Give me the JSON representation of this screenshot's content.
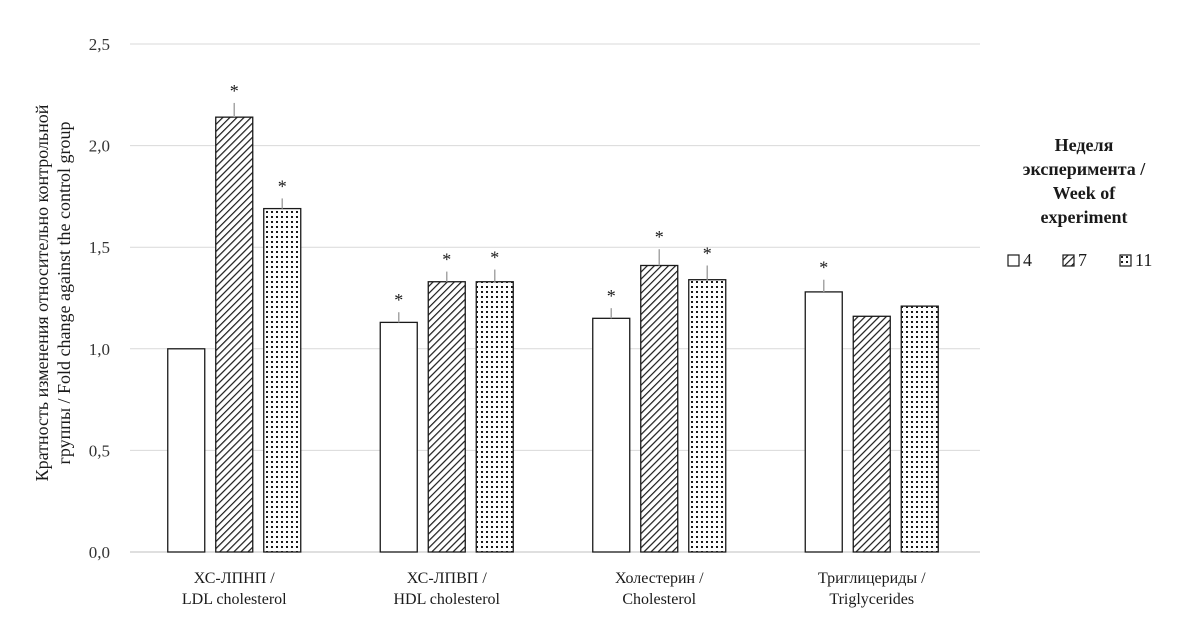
{
  "chart_data": {
    "type": "bar",
    "ylabel_lines": [
      "Кратность изменения относительно контрольной",
      "группы / Fold change against the control group"
    ],
    "xlabel": "",
    "ylim": [
      0,
      2.5
    ],
    "yticks": [
      "0,0",
      "0,5",
      "1,0",
      "1,5",
      "2,0",
      "2,5"
    ],
    "ytick_values": [
      0,
      0.5,
      1.0,
      1.5,
      2.0,
      2.5
    ],
    "grid": true,
    "categories": [
      [
        "ХС-ЛПНП /",
        "LDL cholesterol"
      ],
      [
        "ХС-ЛПВП /",
        "HDL cholesterol"
      ],
      [
        "Холестерин /",
        "Cholesterol"
      ],
      [
        "Триглицериды /",
        "Triglycerides"
      ]
    ],
    "series": [
      {
        "name": "4",
        "pattern": "plain",
        "values": [
          1.0,
          1.13,
          1.15,
          1.28
        ],
        "errors": [
          0,
          0.05,
          0.05,
          0.06
        ],
        "significant": [
          false,
          true,
          true,
          true
        ]
      },
      {
        "name": "7",
        "pattern": "hatch",
        "values": [
          2.14,
          1.33,
          1.41,
          1.16
        ],
        "errors": [
          0.07,
          0.05,
          0.08,
          0
        ],
        "significant": [
          true,
          true,
          true,
          false
        ]
      },
      {
        "name": "11",
        "pattern": "dots",
        "values": [
          1.69,
          1.33,
          1.34,
          1.21
        ],
        "errors": [
          0.05,
          0.06,
          0.07,
          0
        ],
        "significant": [
          true,
          true,
          true,
          false
        ]
      }
    ],
    "significance_marker": "*",
    "legend": {
      "title_lines": [
        "Неделя",
        "эксперимента /",
        "Week of",
        "experiment"
      ],
      "position": "right"
    },
    "colors": {
      "bar_stroke": "#1a1a1a",
      "grid": "#d9d9d9",
      "error": "#a6a6a6",
      "fill": "#ffffff"
    }
  }
}
